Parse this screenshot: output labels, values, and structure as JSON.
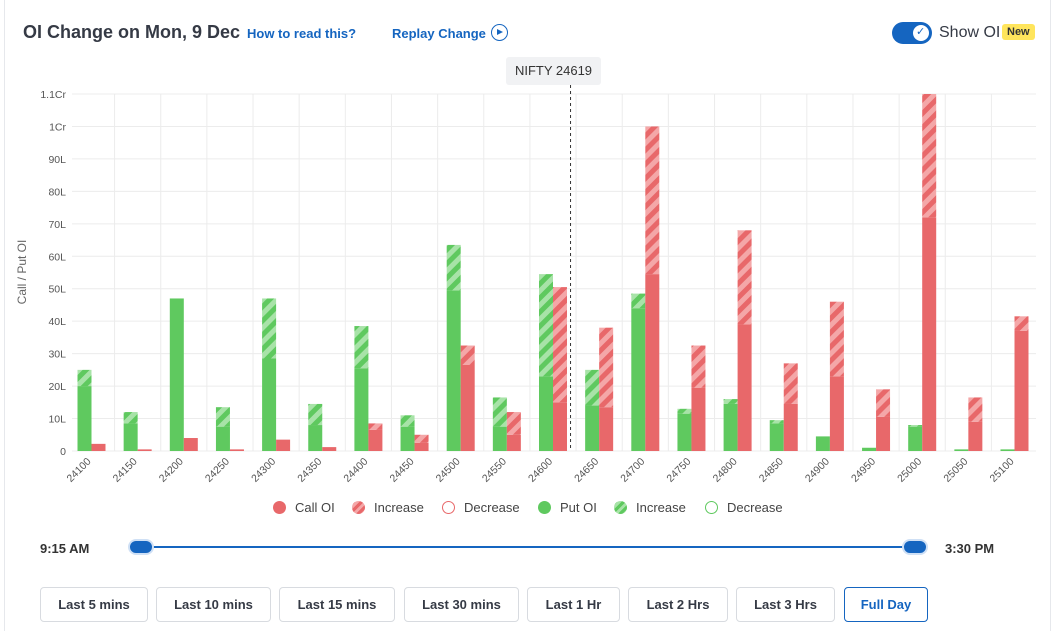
{
  "header": {
    "title": "OI Change on Mon, 9 Dec",
    "how_to_read": "How to read this?",
    "replay": "Replay Change",
    "show_oi": "Show OI",
    "badge": "New"
  },
  "spot_label": "NIFTY 24619",
  "legend": {
    "call_oi": "Call OI",
    "call_increase": "Increase",
    "call_decrease": "Decrease",
    "put_oi": "Put OI",
    "put_increase": "Increase",
    "put_decrease": "Decrease"
  },
  "colors": {
    "call": "#e8686a",
    "call_stripe": "#f4a7a8",
    "put": "#5fc95f",
    "put_stripe": "#a8e3a8",
    "accent": "#1565c0"
  },
  "time_range": {
    "start": "9:15 AM",
    "end": "3:30 PM"
  },
  "range_buttons": [
    "Last 5 mins",
    "Last 10 mins",
    "Last 15 mins",
    "Last 30 mins",
    "Last 1 Hr",
    "Last 2 Hrs",
    "Last 3 Hrs",
    "Full Day"
  ],
  "active_range": "Full Day",
  "chart_data": {
    "type": "bar",
    "ylabel": "Call / Put OI",
    "y_ticks": [
      "0",
      "10L",
      "20L",
      "30L",
      "40L",
      "50L",
      "60L",
      "70L",
      "80L",
      "90L",
      "1Cr",
      "1.1Cr"
    ],
    "ylim": [
      0,
      110
    ],
    "unit": "Lakh",
    "spot_value": 24619,
    "categories": [
      "24100",
      "24150",
      "24200",
      "24250",
      "24300",
      "24350",
      "24400",
      "24450",
      "24500",
      "24550",
      "24600",
      "24650",
      "24700",
      "24750",
      "24800",
      "24850",
      "24900",
      "24950",
      "25000",
      "25050",
      "25100"
    ],
    "series": [
      {
        "name": "Put OI",
        "base": [
          20,
          8.5,
          47,
          7.5,
          28.5,
          8,
          25.5,
          7.5,
          49.5,
          7.5,
          23,
          14,
          44,
          11.5,
          14.5,
          8.5,
          4.5,
          1,
          7.5,
          0.5,
          0.5
        ]
      },
      {
        "name": "Increase",
        "kind": "put_increase",
        "values": [
          5,
          3.5,
          0,
          6,
          18.5,
          6.5,
          13,
          3.5,
          14,
          9,
          31.5,
          11,
          4.5,
          1.5,
          1.5,
          1,
          0,
          0,
          0.5,
          0,
          0
        ]
      },
      {
        "name": "Call OI",
        "base": [
          2.2,
          0.5,
          4,
          0.5,
          3.5,
          1.2,
          6.5,
          2.5,
          26.5,
          5,
          15,
          13.5,
          54.5,
          19.5,
          39,
          14.5,
          23,
          10.5,
          72,
          9,
          37
        ]
      },
      {
        "name": "Increase",
        "kind": "call_increase",
        "values": [
          0,
          0,
          0,
          0,
          0,
          0,
          2,
          2.5,
          6,
          7,
          35.5,
          24.5,
          45.5,
          13,
          29,
          12.5,
          23,
          8.5,
          38,
          7.5,
          4.5
        ]
      }
    ]
  }
}
